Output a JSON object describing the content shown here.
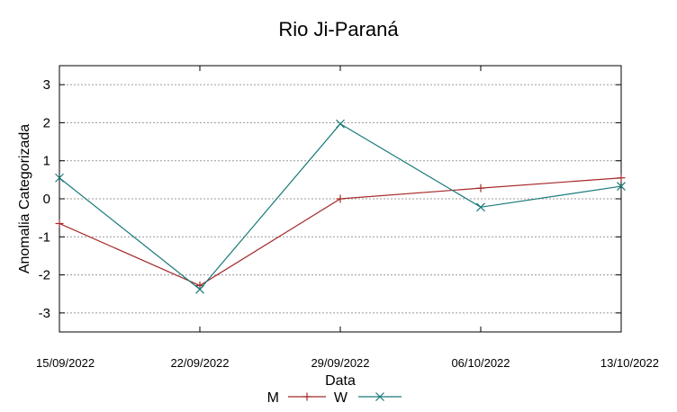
{
  "chart_data": {
    "type": "line",
    "title": "Rio Ji-Paraná",
    "xlabel": "Data",
    "ylabel": "Anomalia Categorizada",
    "categories": [
      "15/09/2022",
      "22/09/2022",
      "29/09/2022",
      "06/10/2022",
      "13/10/2022"
    ],
    "yticks": [
      "3",
      "2",
      "1",
      "0",
      "-1",
      "-2",
      "-3"
    ],
    "ylim": [
      -3.5,
      3.5
    ],
    "grid": true,
    "legend_position": "bottom",
    "series": [
      {
        "name": "M",
        "color": "#a52a2a",
        "marker": "plus",
        "values": [
          -0.65,
          -2.28,
          0.0,
          0.28,
          0.55
        ]
      },
      {
        "name": "W",
        "color": "#1a7a7a",
        "marker": "cross",
        "values": [
          0.55,
          -2.38,
          1.97,
          -0.22,
          0.33
        ]
      }
    ]
  }
}
